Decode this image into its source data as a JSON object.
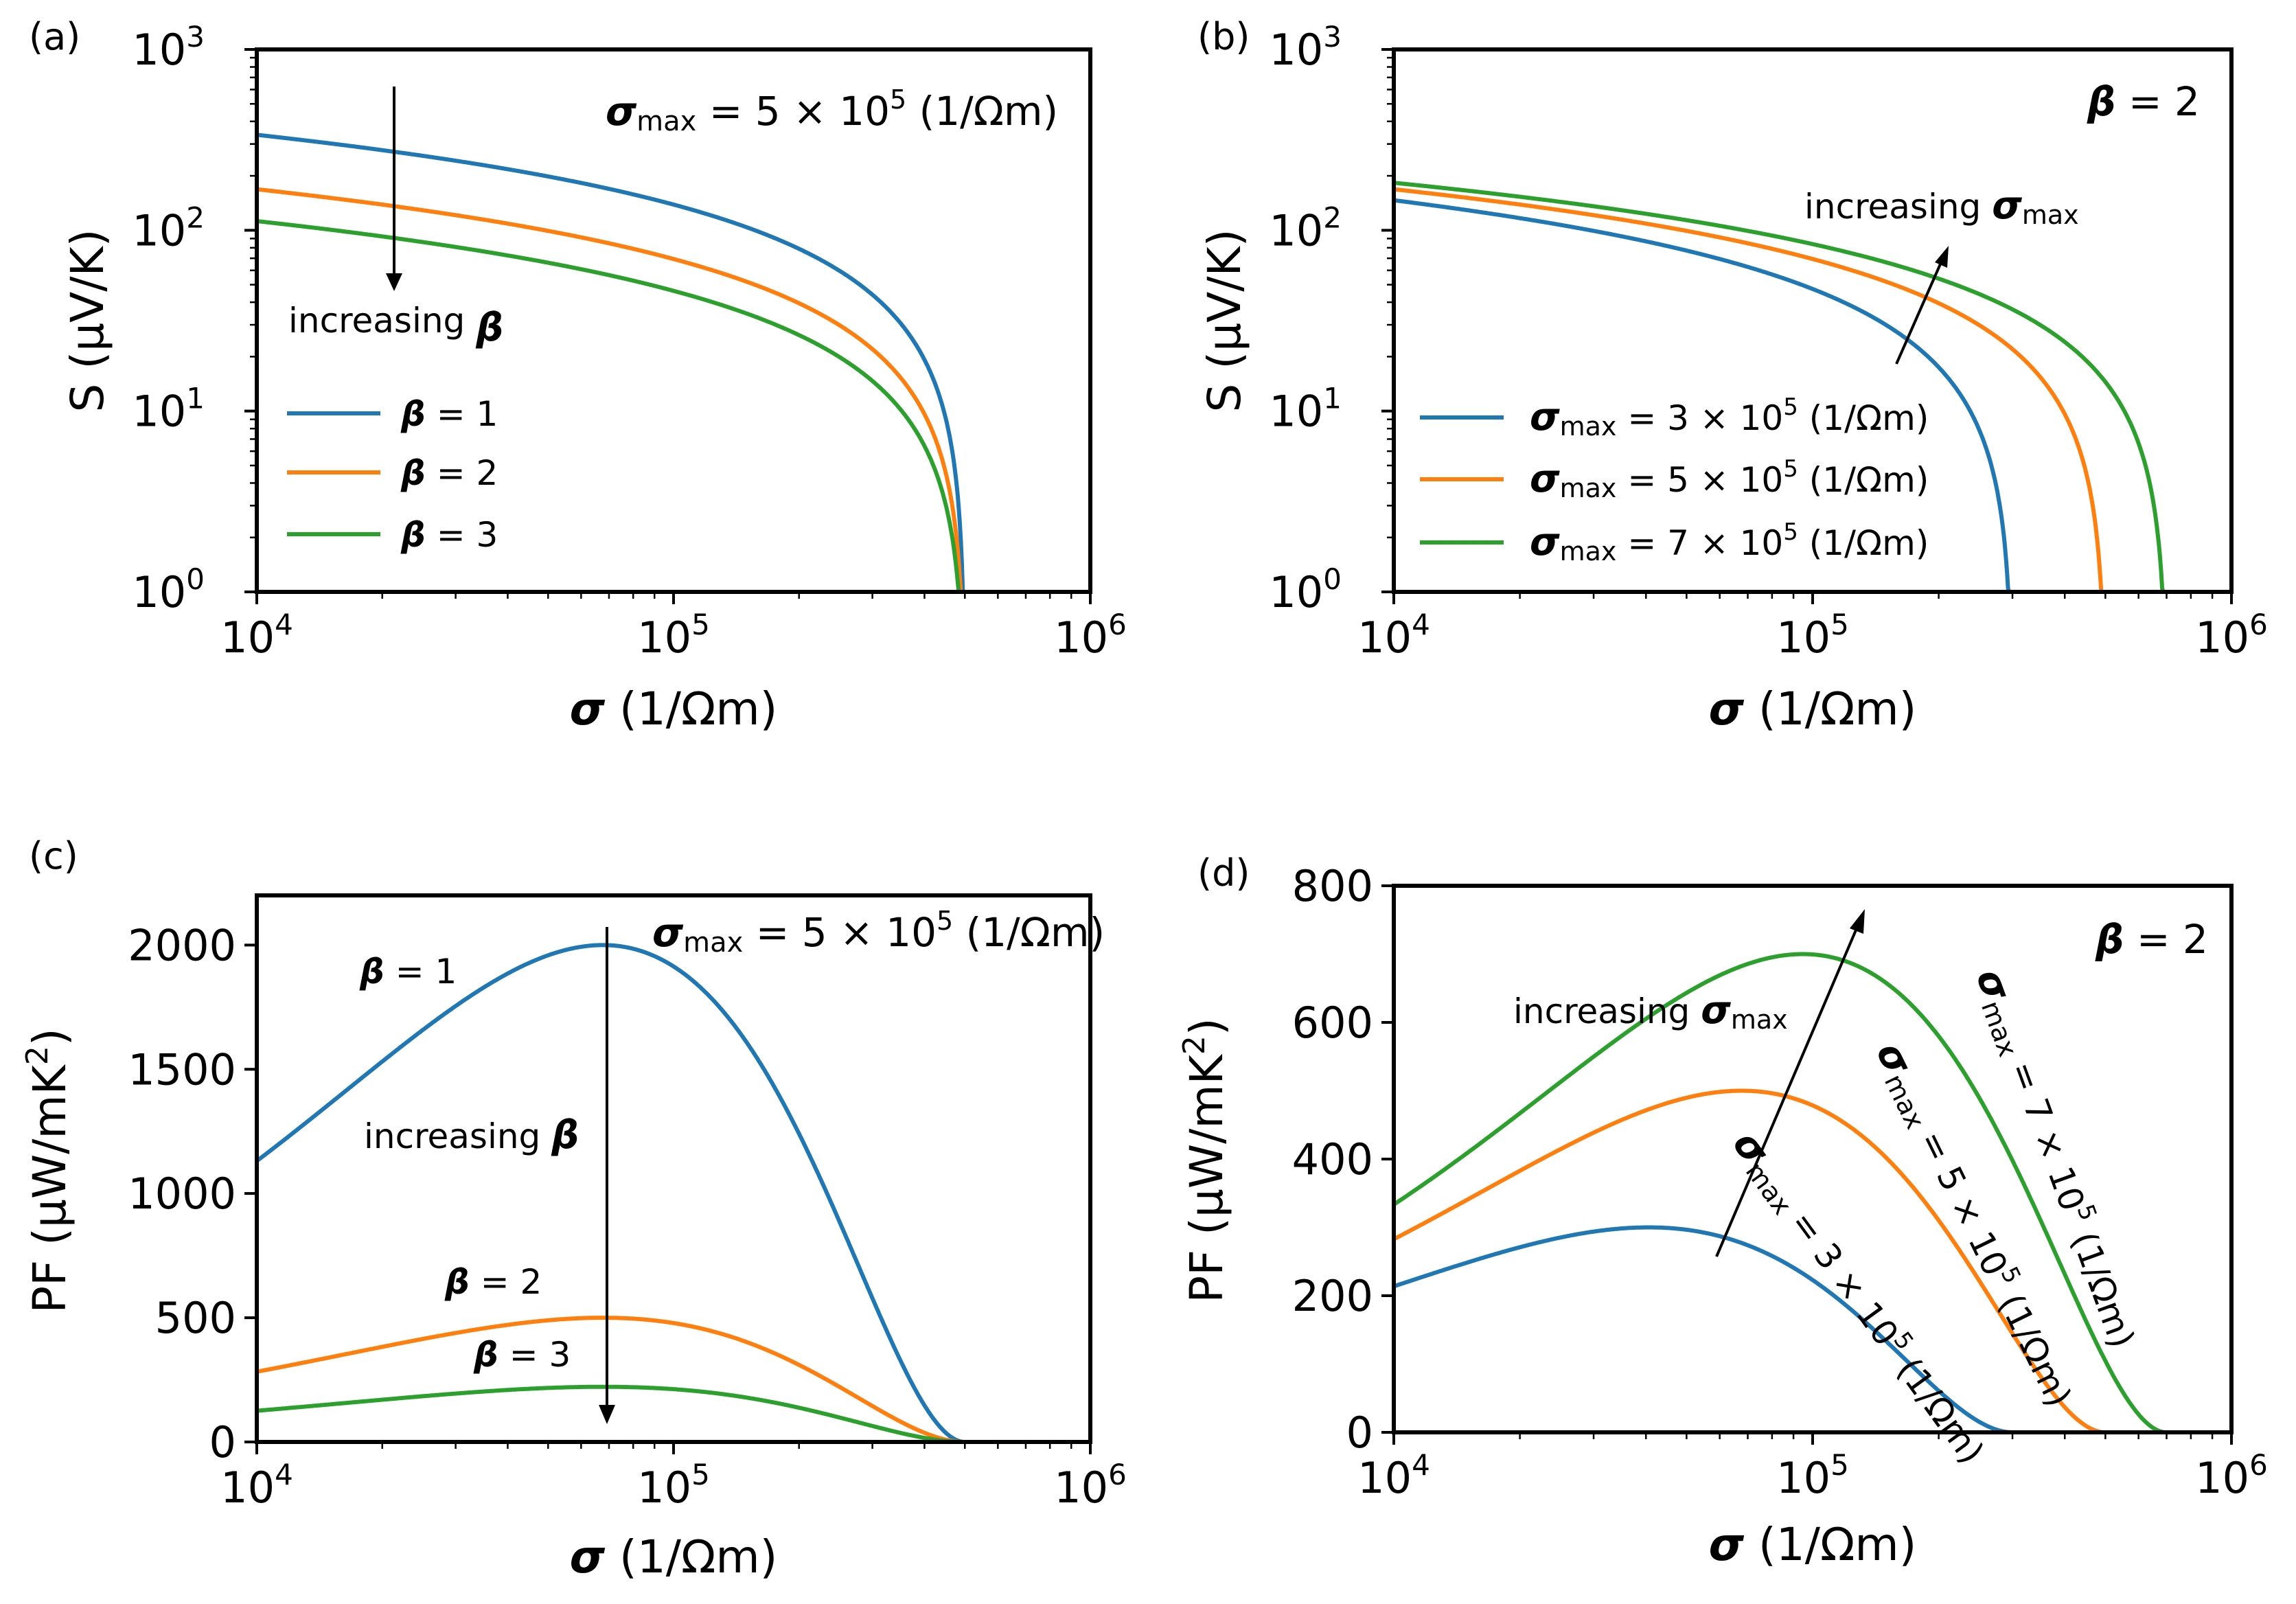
{
  "colors": {
    "blue": "#1f77b4",
    "orange": "#ff7f0e",
    "green": "#2ca02c"
  },
  "chart_data": [
    {
      "id": "a",
      "panel_label": "(a)",
      "type": "line",
      "xscale": "log",
      "yscale": "log",
      "xlim": [
        10000,
        1000000
      ],
      "ylim": [
        1,
        1000
      ],
      "x_ticks": [
        {
          "value": 10000,
          "base": "10",
          "exp": "4"
        },
        {
          "value": 100000,
          "base": "10",
          "exp": "5"
        },
        {
          "value": 1000000,
          "base": "10",
          "exp": "6"
        }
      ],
      "y_ticks": [
        {
          "value": 1,
          "base": "10",
          "exp": "0"
        },
        {
          "value": 10,
          "base": "10",
          "exp": "1"
        },
        {
          "value": 100,
          "base": "10",
          "exp": "2"
        },
        {
          "value": 1000,
          "base": "10",
          "exp": "3"
        }
      ],
      "xlabel": {
        "sym": "σ",
        "rest": " (1/Ωm)"
      },
      "ylabel": "S (μV/K)",
      "model": "seebeck",
      "series": [
        {
          "name": "β = 1",
          "sym": "β",
          "rest": " = 1",
          "color": "#1f77b4",
          "beta": 1,
          "sigma_max": 500000
        },
        {
          "name": "β = 2",
          "sym": "β",
          "rest": " = 2",
          "color": "#ff7f0e",
          "beta": 2,
          "sigma_max": 500000
        },
        {
          "name": "β = 3",
          "sym": "β",
          "rest": " = 3",
          "color": "#2ca02c",
          "beta": 3,
          "sigma_max": 500000
        }
      ],
      "legend": {
        "position": "center-left"
      },
      "annotations": [
        {
          "role": "title",
          "pre": "σ",
          "sub": "max",
          "mid": " = 5 × 10",
          "sup": "5",
          "post": " (1/Ωm)"
        },
        {
          "role": "arrow-label",
          "plain": "increasing ",
          "greek": "β"
        }
      ]
    },
    {
      "id": "b",
      "panel_label": "(b)",
      "type": "line",
      "xscale": "log",
      "yscale": "log",
      "xlim": [
        10000,
        1000000
      ],
      "ylim": [
        1,
        1000
      ],
      "x_ticks": [
        {
          "value": 10000,
          "base": "10",
          "exp": "4"
        },
        {
          "value": 100000,
          "base": "10",
          "exp": "5"
        },
        {
          "value": 1000000,
          "base": "10",
          "exp": "6"
        }
      ],
      "y_ticks": [
        {
          "value": 1,
          "base": "10",
          "exp": "0"
        },
        {
          "value": 10,
          "base": "10",
          "exp": "1"
        },
        {
          "value": 100,
          "base": "10",
          "exp": "2"
        },
        {
          "value": 1000,
          "base": "10",
          "exp": "3"
        }
      ],
      "xlabel": {
        "sym": "σ",
        "rest": " (1/Ωm)"
      },
      "ylabel": "S (μV/K)",
      "model": "seebeck",
      "series": [
        {
          "name": "σmax = 3 × 10^5 (1/Ωm)",
          "sym": "σ",
          "sub": "max",
          "rest": " = 3 × 10",
          "sup": "5",
          "post": " (1/Ωm)",
          "color": "#1f77b4",
          "beta": 2,
          "sigma_max": 300000
        },
        {
          "name": "σmax = 5 × 10^5 (1/Ωm)",
          "sym": "σ",
          "sub": "max",
          "rest": " = 5 × 10",
          "sup": "5",
          "post": " (1/Ωm)",
          "color": "#ff7f0e",
          "beta": 2,
          "sigma_max": 500000
        },
        {
          "name": "σmax = 7 × 10^5 (1/Ωm)",
          "sym": "σ",
          "sub": "max",
          "rest": " = 7 × 10",
          "sup": "5",
          "post": " (1/Ωm)",
          "color": "#2ca02c",
          "beta": 2,
          "sigma_max": 700000
        }
      ],
      "legend": {
        "position": "lower-left"
      },
      "annotations": [
        {
          "role": "title",
          "greek": "β",
          "plain": " = 2"
        },
        {
          "role": "arrow-label",
          "plain": "increasing ",
          "sym": "σ",
          "sub": "max"
        }
      ]
    },
    {
      "id": "c",
      "panel_label": "(c)",
      "type": "line",
      "xscale": "log",
      "yscale": "linear",
      "xlim": [
        10000,
        1000000
      ],
      "ylim": [
        0,
        2200
      ],
      "x_ticks": [
        {
          "value": 10000,
          "base": "10",
          "exp": "4"
        },
        {
          "value": 100000,
          "base": "10",
          "exp": "5"
        },
        {
          "value": 1000000,
          "base": "10",
          "exp": "6"
        }
      ],
      "y_ticks": [
        {
          "value": 0,
          "label": "0"
        },
        {
          "value": 500,
          "label": "500"
        },
        {
          "value": 1000,
          "label": "1000"
        },
        {
          "value": 1500,
          "label": "1500"
        },
        {
          "value": 2000,
          "label": "2000"
        }
      ],
      "xlabel": {
        "sym": "σ",
        "rest": " (1/Ωm)"
      },
      "ylabel": {
        "text": "PF (μW/mK",
        "sup": "2",
        "post": ")"
      },
      "model": "power_factor",
      "peak_values": [
        2000,
        500,
        222
      ],
      "series": [
        {
          "name": "β = 1",
          "sym": "β",
          "rest": " = 1",
          "color": "#1f77b4",
          "beta": 1,
          "sigma_max": 500000
        },
        {
          "name": "β = 2",
          "sym": "β",
          "rest": " = 2",
          "color": "#ff7f0e",
          "beta": 2,
          "sigma_max": 500000
        },
        {
          "name": "β = 3",
          "sym": "β",
          "rest": " = 3",
          "color": "#2ca02c",
          "beta": 3,
          "sigma_max": 500000
        }
      ],
      "annotations": [
        {
          "role": "title",
          "pre": "σ",
          "sub": "max",
          "mid": " = 5 × 10",
          "sup": "5",
          "post": " (1/Ωm)"
        },
        {
          "role": "arrow-label",
          "plain": "increasing ",
          "greek": "β"
        }
      ]
    },
    {
      "id": "d",
      "panel_label": "(d)",
      "type": "line",
      "xscale": "log",
      "yscale": "linear",
      "xlim": [
        10000,
        1000000
      ],
      "ylim": [
        0,
        800
      ],
      "x_ticks": [
        {
          "value": 10000,
          "base": "10",
          "exp": "4"
        },
        {
          "value": 100000,
          "base": "10",
          "exp": "5"
        },
        {
          "value": 1000000,
          "base": "10",
          "exp": "6"
        }
      ],
      "y_ticks": [
        {
          "value": 0,
          "label": "0"
        },
        {
          "value": 200,
          "label": "200"
        },
        {
          "value": 400,
          "label": "400"
        },
        {
          "value": 600,
          "label": "600"
        },
        {
          "value": 800,
          "label": "800"
        }
      ],
      "xlabel": {
        "sym": "σ",
        "rest": " (1/Ωm)"
      },
      "ylabel": {
        "text": "PF (μW/mK",
        "sup": "2",
        "post": ")"
      },
      "model": "power_factor",
      "peak_values": [
        300,
        500,
        700
      ],
      "series": [
        {
          "name": "σmax = 3 × 10^5 (1/Ωm)",
          "sym": "σ",
          "sub": "max",
          "rest": " = 3 × 10",
          "sup": "5",
          "post": " (1/Ωm)",
          "color": "#1f77b4",
          "beta": 2,
          "sigma_max": 300000
        },
        {
          "name": "σmax = 5 × 10^5 (1/Ωm)",
          "sym": "σ",
          "sub": "max",
          "rest": " = 5 × 10",
          "sup": "5",
          "post": " (1/Ωm)",
          "color": "#ff7f0e",
          "beta": 2,
          "sigma_max": 500000
        },
        {
          "name": "σmax = 7 × 10^5 (1/Ωm)",
          "sym": "σ",
          "sub": "max",
          "rest": " = 7 × 10",
          "sup": "5",
          "post": " (1/Ωm)",
          "color": "#2ca02c",
          "beta": 2,
          "sigma_max": 700000
        }
      ],
      "annotations": [
        {
          "role": "title",
          "greek": "β",
          "plain": " = 2"
        },
        {
          "role": "arrow-label",
          "plain": "increasing ",
          "sym": "σ",
          "sub": "max"
        }
      ]
    }
  ]
}
